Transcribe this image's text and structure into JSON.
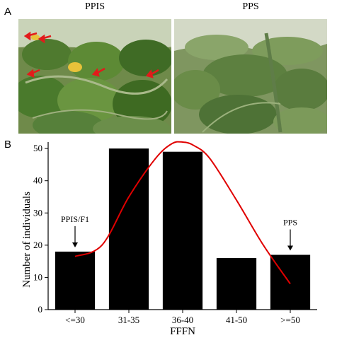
{
  "panel_a": {
    "letter": "A",
    "photos": [
      {
        "title": "PPIS"
      },
      {
        "title": "PPS"
      }
    ]
  },
  "panel_b": {
    "letter": "B"
  },
  "chart_data": {
    "type": "bar",
    "title": "",
    "xlabel": "FFFN",
    "ylabel": "Number of individuals",
    "categories": [
      "<=30",
      "31-35",
      "36-40",
      "41-50",
      ">=50"
    ],
    "values": [
      18,
      50,
      49,
      16,
      17
    ],
    "ylim": [
      0,
      52
    ],
    "yticks": [
      0,
      10,
      20,
      30,
      40,
      50
    ],
    "bar_color": "#000000",
    "curve_color": "#e00000",
    "curve": [
      {
        "x": 0,
        "y": 16.5
      },
      {
        "x": 0.5,
        "y": 20
      },
      {
        "x": 1.0,
        "y": 35
      },
      {
        "x": 1.5,
        "y": 47
      },
      {
        "x": 1.8,
        "y": 51.5
      },
      {
        "x": 2.0,
        "y": 52
      },
      {
        "x": 2.2,
        "y": 51
      },
      {
        "x": 2.5,
        "y": 47
      },
      {
        "x": 3.0,
        "y": 34
      },
      {
        "x": 3.5,
        "y": 20
      },
      {
        "x": 4.0,
        "y": 8
      }
    ],
    "annotations": [
      {
        "text": "PPIS/F1",
        "category_index": 0
      },
      {
        "text": "PPS",
        "category_index": 4
      }
    ]
  }
}
